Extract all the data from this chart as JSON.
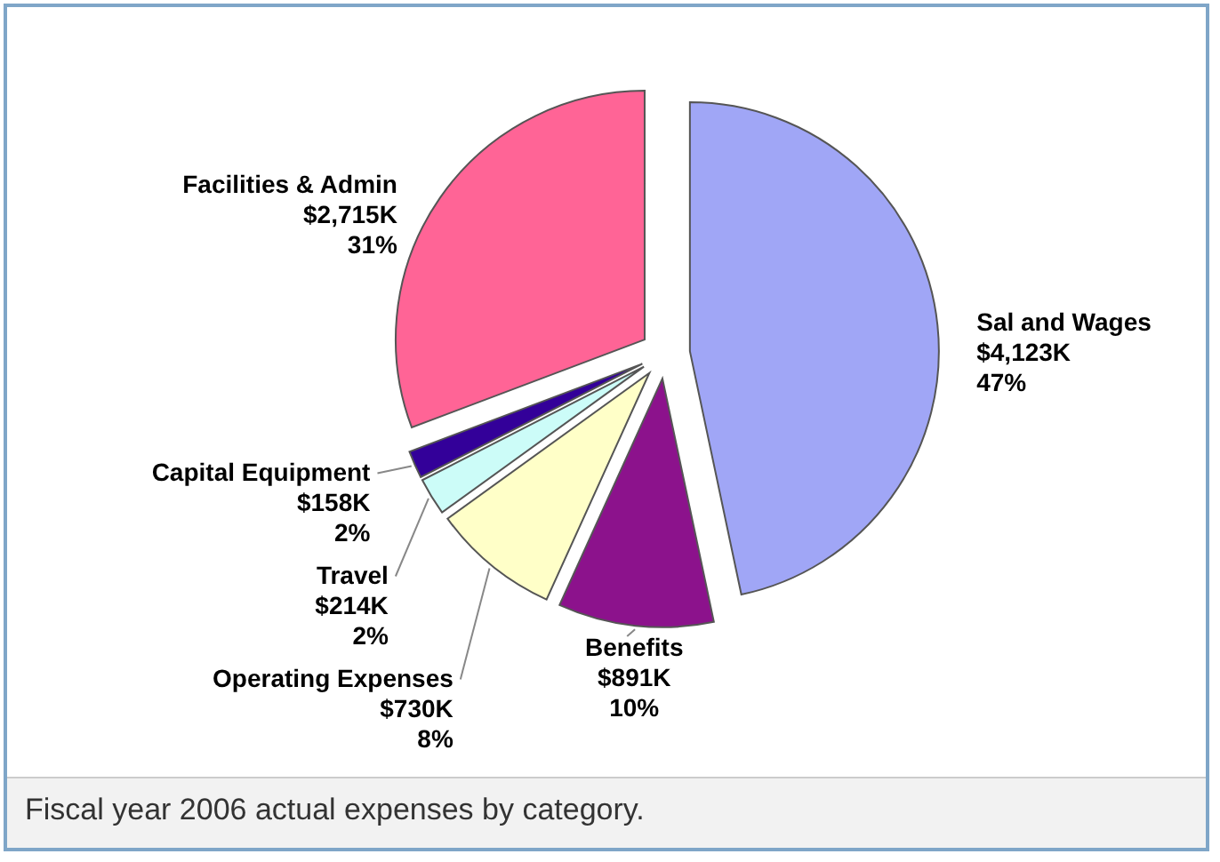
{
  "chart_data": {
    "type": "pie",
    "categories": [
      "Sal and Wages",
      "Benefits",
      "Operating Expenses",
      "Travel",
      "Capital Equipment",
      "Facilities & Admin"
    ],
    "values": [
      4123,
      891,
      730,
      214,
      158,
      2715
    ],
    "value_labels": [
      "$4,123K",
      "$891K",
      "$730K",
      "$214K",
      "$158K",
      "$2,715K"
    ],
    "colors": [
      "#a0a6f6",
      "#8c128c",
      "#ffffc8",
      "#ccfcf8",
      "#330099",
      "#ff6496"
    ],
    "annotations": [
      {
        "text": "47%",
        "x": "Sal and Wages"
      },
      {
        "text": "10%",
        "x": "Benefits"
      },
      {
        "text": "8%",
        "x": "Operating Expenses"
      },
      {
        "text": "2%",
        "x": "Travel"
      },
      {
        "text": "2%",
        "x": "Capital Equipment"
      },
      {
        "text": "31%",
        "x": "Facilities & Admin"
      },
      "Fiscal year 2006 actual expenses by category."
    ]
  }
}
